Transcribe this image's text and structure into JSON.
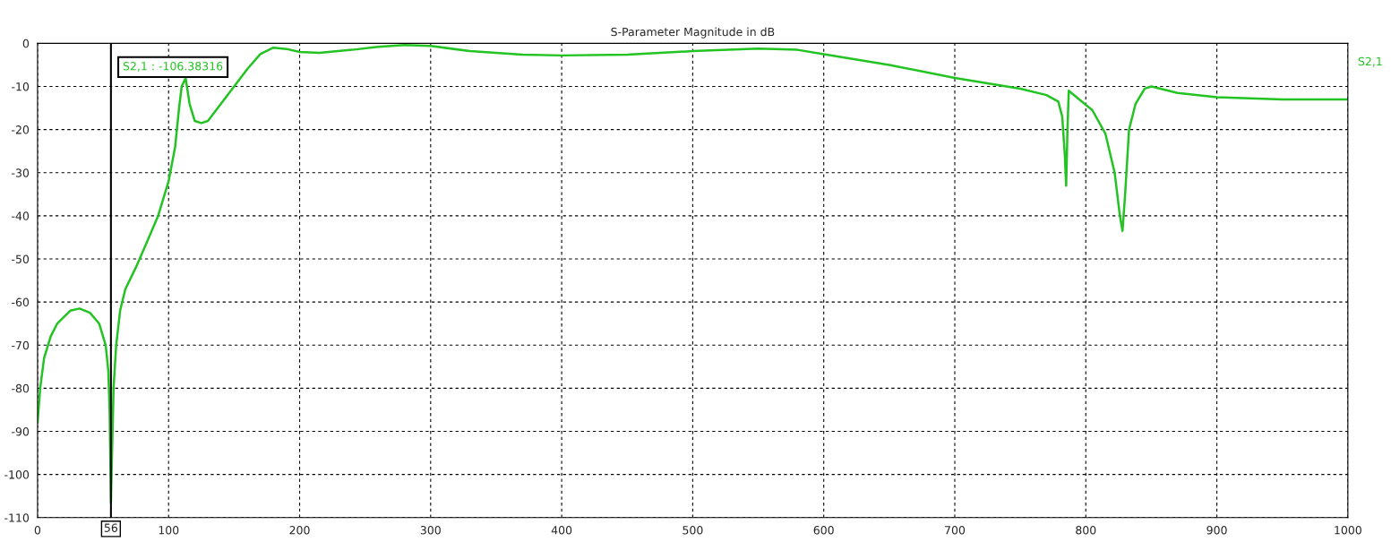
{
  "chart_data": {
    "type": "line",
    "title": "S-Parameter Magnitude in dB",
    "x": [
      0,
      2,
      5,
      10,
      15,
      25,
      32,
      40,
      47,
      52,
      54,
      55,
      56,
      57,
      58,
      60,
      63,
      67,
      75,
      85,
      92,
      100,
      105,
      108,
      110,
      113,
      116,
      120,
      125,
      130,
      140,
      150,
      160,
      170,
      180,
      190,
      200,
      215,
      240,
      260,
      280,
      300,
      330,
      370,
      400,
      450,
      500,
      550,
      580,
      600,
      650,
      700,
      750,
      770,
      779,
      782,
      784,
      785,
      786,
      787,
      789,
      795,
      805,
      815,
      822,
      826,
      828,
      830,
      833,
      838,
      845,
      850,
      870,
      900,
      950,
      1000
    ],
    "series": [
      {
        "name": "S2,1",
        "color": "#22c322",
        "values": [
          -88,
          -80,
          -73,
          -68,
          -65,
          -62,
          -61.5,
          -62.5,
          -65,
          -70,
          -76,
          -85,
          -106.4,
          -93,
          -80,
          -70,
          -62,
          -57,
          -52,
          -45,
          -40,
          -32,
          -24,
          -15,
          -10,
          -8,
          -14,
          -18,
          -18.5,
          -18,
          -14,
          -10,
          -6,
          -2.5,
          -1,
          -1.3,
          -2,
          -2.2,
          -1.5,
          -0.8,
          -0.4,
          -0.6,
          -1.8,
          -2.6,
          -2.8,
          -2.6,
          -1.8,
          -1.2,
          -1.5,
          -2.5,
          -5,
          -8,
          -10.5,
          -12,
          -13.5,
          -17,
          -26,
          -33,
          -20,
          -11,
          -11.5,
          -13,
          -15.5,
          -21,
          -30,
          -40,
          -43.5,
          -35,
          -20,
          -14,
          -10.5,
          -10,
          -11.5,
          -12.5,
          -13,
          -13
        ]
      }
    ],
    "xlim": [
      0,
      1000
    ],
    "xticks": [
      0,
      100,
      200,
      300,
      400,
      500,
      600,
      700,
      800,
      900,
      1000
    ],
    "ylim": [
      -110,
      0
    ],
    "yticks": [
      -110,
      -100,
      -90,
      -80,
      -70,
      -60,
      -50,
      -40,
      -30,
      -20,
      -10,
      0
    ],
    "grid": true,
    "line_style": "solid",
    "marker": "none",
    "ref_lines": [
      {
        "axis": "x",
        "value": 56,
        "label": "56",
        "color": "#000000"
      }
    ],
    "annotations": [
      "S2,1 : -106.38316"
    ]
  }
}
